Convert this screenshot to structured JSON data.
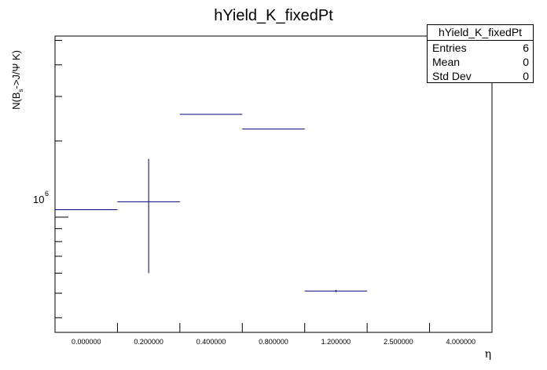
{
  "chart_data": {
    "type": "histogram",
    "title": "hYield_K_fixedPt",
    "xlabel": "η",
    "ylabel": "N(B_s->J/Ψ K)",
    "ylabel_parts": {
      "base": "N(B",
      "sub": "s",
      "rest": "->J/Ψ K)"
    },
    "y_scale": "log",
    "ylim": [
      350000,
      5200000
    ],
    "y_tick_label": {
      "mantissa": "10",
      "exponent": "6",
      "value": 1000000
    },
    "categories": [
      "0.000000",
      "0.200000",
      "0.400000",
      "0.800000",
      "1.200000",
      "2.500000",
      "4.000000"
    ],
    "values": [
      1070000,
      1150000,
      2550000,
      2230000,
      510000,
      null,
      null
    ],
    "errors": [
      0,
      550000,
      0,
      0,
      5000,
      null,
      null
    ],
    "legend": "none",
    "grid": false,
    "line_color": "#00007f"
  },
  "stats_box": {
    "title": "hYield_K_fixedPt",
    "rows": [
      {
        "label": "Entries",
        "value": "6"
      },
      {
        "label": "Mean",
        "value": "0"
      },
      {
        "label": "Std Dev",
        "value": "0"
      }
    ]
  }
}
